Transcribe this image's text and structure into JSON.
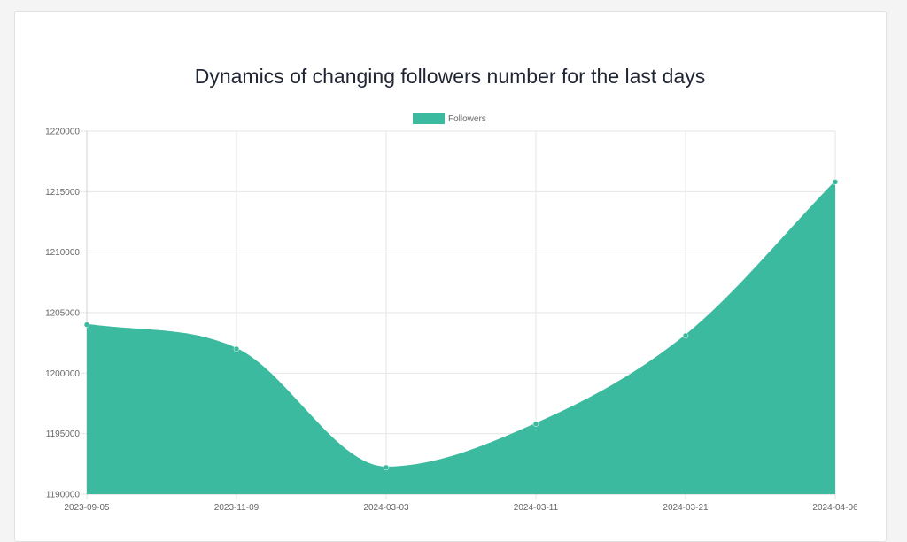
{
  "chart_data": {
    "type": "area",
    "title": "Dynamics of changing followers number for the last days",
    "x": [
      "2023-09-05",
      "2023-11-09",
      "2024-03-03",
      "2024-03-11",
      "2024-03-21",
      "2024-04-06"
    ],
    "series": [
      {
        "name": "Followers",
        "values": [
          1204000,
          1202000,
          1192200,
          1195800,
          1203100,
          1215800
        ],
        "color": "#3cba9f"
      }
    ],
    "xlabel": "",
    "ylabel": "",
    "ylim": [
      1190000,
      1220000
    ],
    "yticks": [
      1220000,
      1215000,
      1210000,
      1205000,
      1200000,
      1195000,
      1190000
    ],
    "grid": true,
    "legend_position": "top-center"
  }
}
